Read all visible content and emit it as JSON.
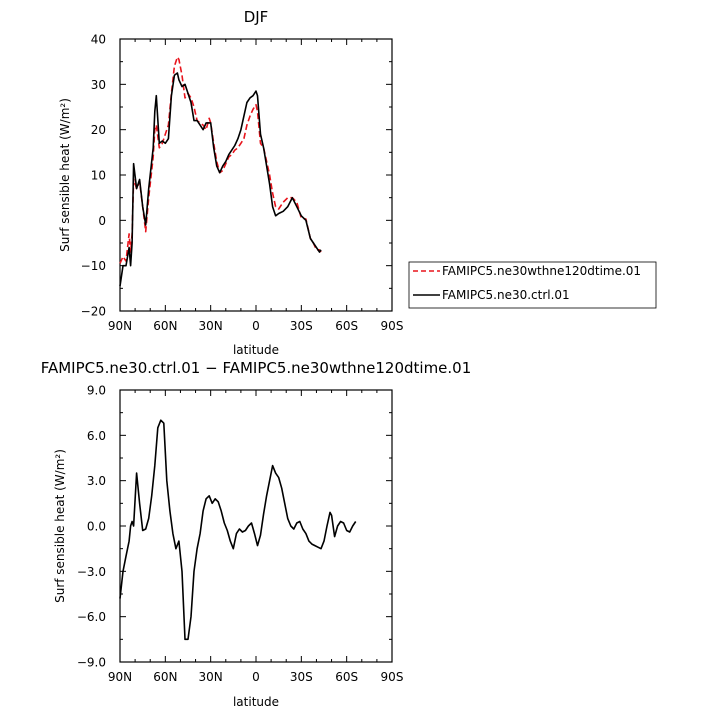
{
  "chart_data": [
    {
      "type": "line",
      "title": "DJF",
      "xlabel": "latitude",
      "ylabel": "Surf sensible heat (W/m²)",
      "xlim": [
        90,
        -90
      ],
      "ylim": [
        -20,
        40
      ],
      "x_tick_values": [
        90,
        60,
        30,
        0,
        -30,
        -60,
        -90
      ],
      "x_tick_labels": [
        "90N",
        "60N",
        "30N",
        "0",
        "30S",
        "60S",
        "90S"
      ],
      "y_tick_values": [
        -20,
        -10,
        0,
        10,
        20,
        30,
        40
      ],
      "y_tick_labels": [
        "−20",
        "−10",
        "0",
        "10",
        "20",
        "30",
        "40"
      ],
      "legend": "right",
      "series": [
        {
          "name": "FAMIPC5.ne30wthne120dtime.01",
          "color": "#e8141c",
          "dash": "dashed",
          "points": [
            [
              90,
              -9.5
            ],
            [
              88,
              -8
            ],
            [
              86,
              -9
            ],
            [
              84,
              -3
            ],
            [
              83,
              -7
            ],
            [
              82,
              -3
            ],
            [
              81,
              9
            ],
            [
              79,
              7
            ],
            [
              77,
              8.5
            ],
            [
              75,
              3
            ],
            [
              73,
              -2.5
            ],
            [
              71,
              5
            ],
            [
              68,
              14
            ],
            [
              67,
              20
            ],
            [
              66,
              21
            ],
            [
              64,
              16
            ],
            [
              62,
              17
            ],
            [
              60,
              19
            ],
            [
              58,
              21
            ],
            [
              56,
              28
            ],
            [
              54,
              34
            ],
            [
              52,
              36
            ],
            [
              51,
              35.5
            ],
            [
              49,
              32
            ],
            [
              47,
              27
            ],
            [
              45,
              28
            ],
            [
              43,
              27
            ],
            [
              41,
              25
            ],
            [
              39,
              22
            ],
            [
              37,
              21.5
            ],
            [
              35,
              21
            ],
            [
              33,
              20
            ],
            [
              31,
              22.5
            ],
            [
              30,
              21.5
            ],
            [
              28,
              17
            ],
            [
              26,
              13
            ],
            [
              24,
              10.5
            ],
            [
              22,
              11
            ],
            [
              20,
              12.5
            ],
            [
              18,
              14
            ],
            [
              16,
              14.5
            ],
            [
              14,
              15.5
            ],
            [
              12,
              16
            ],
            [
              10,
              17
            ],
            [
              8,
              18
            ],
            [
              6,
              21
            ],
            [
              4,
              23
            ],
            [
              2,
              24.5
            ],
            [
              0,
              25.5
            ],
            [
              -1,
              24
            ],
            [
              -3,
              17
            ],
            [
              -5,
              16
            ],
            [
              -7,
              13
            ],
            [
              -9,
              10
            ],
            [
              -11,
              6
            ],
            [
              -13,
              3
            ],
            [
              -15,
              2.5
            ],
            [
              -18,
              4
            ],
            [
              -21,
              5
            ],
            [
              -24,
              5
            ],
            [
              -27,
              4
            ],
            [
              -30,
              0.5
            ],
            [
              -33,
              0.3
            ],
            [
              -36,
              -4
            ],
            [
              -38,
              -5
            ],
            [
              -40,
              -6.5
            ],
            [
              -42,
              -6.5
            ],
            [
              -43,
              -7
            ]
          ]
        },
        {
          "name": "FAMIPC5.ne30.ctrl.01",
          "color": "#000000",
          "dash": "solid",
          "points": [
            [
              90,
              -14.5
            ],
            [
              88,
              -10
            ],
            [
              86,
              -10
            ],
            [
              84,
              -6
            ],
            [
              83,
              -10
            ],
            [
              82,
              -5
            ],
            [
              81,
              12.5
            ],
            [
              79,
              7
            ],
            [
              77,
              9
            ],
            [
              75,
              3
            ],
            [
              73,
              -1
            ],
            [
              71,
              7
            ],
            [
              68,
              16
            ],
            [
              67,
              24
            ],
            [
              66,
              27.5
            ],
            [
              64,
              17
            ],
            [
              62,
              17.5
            ],
            [
              60,
              17
            ],
            [
              58,
              18
            ],
            [
              56,
              27.5
            ],
            [
              54,
              32
            ],
            [
              52,
              32.5
            ],
            [
              51,
              31
            ],
            [
              49,
              29.5
            ],
            [
              47,
              30
            ],
            [
              45,
              28
            ],
            [
              43,
              26
            ],
            [
              41,
              22
            ],
            [
              39,
              22
            ],
            [
              37,
              21
            ],
            [
              35,
              20
            ],
            [
              33,
              21.5
            ],
            [
              31,
              21.5
            ],
            [
              30,
              21.5
            ],
            [
              28,
              16
            ],
            [
              26,
              12
            ],
            [
              24,
              10.5
            ],
            [
              22,
              12
            ],
            [
              20,
              13
            ],
            [
              18,
              14.5
            ],
            [
              16,
              15.5
            ],
            [
              14,
              16.5
            ],
            [
              12,
              18
            ],
            [
              10,
              20
            ],
            [
              8,
              23
            ],
            [
              6,
              26
            ],
            [
              4,
              27
            ],
            [
              2,
              27.5
            ],
            [
              0,
              28.5
            ],
            [
              -1,
              27.5
            ],
            [
              -3,
              19
            ],
            [
              -5,
              16
            ],
            [
              -7,
              12
            ],
            [
              -9,
              8
            ],
            [
              -11,
              3
            ],
            [
              -13,
              1
            ],
            [
              -15,
              1.5
            ],
            [
              -18,
              2
            ],
            [
              -21,
              3
            ],
            [
              -24,
              5
            ],
            [
              -27,
              3
            ],
            [
              -30,
              1
            ],
            [
              -33,
              0
            ],
            [
              -36,
              -4
            ],
            [
              -38,
              -5
            ],
            [
              -40,
              -6
            ],
            [
              -42,
              -7
            ],
            [
              -43,
              -6.5
            ]
          ]
        }
      ]
    },
    {
      "type": "line",
      "title": "FAMIPC5.ne30.ctrl.01 − FAMIPC5.ne30wthne120dtime.01",
      "xlabel": "latitude",
      "ylabel": "Surf sensible heat (W/m²)",
      "xlim": [
        90,
        -90
      ],
      "ylim": [
        -9,
        9
      ],
      "x_tick_values": [
        90,
        60,
        30,
        0,
        -30,
        -60,
        -90
      ],
      "x_tick_labels": [
        "90N",
        "60N",
        "30N",
        "0",
        "30S",
        "60S",
        "90S"
      ],
      "y_tick_values": [
        -9,
        -6,
        -3,
        0,
        3,
        6,
        9
      ],
      "y_tick_labels": [
        "−9.0",
        "−6.0",
        "−3.0",
        "0.0",
        "3.0",
        "6.0",
        "9.0"
      ],
      "series": [
        {
          "name": "",
          "color": "#000000",
          "dash": "solid",
          "points": [
            [
              90,
              -4.8
            ],
            [
              88,
              -3
            ],
            [
              86,
              -2
            ],
            [
              84,
              -1
            ],
            [
              83,
              0
            ],
            [
              82,
              0.3
            ],
            [
              81,
              0
            ],
            [
              79,
              3.5
            ],
            [
              77,
              1.5
            ],
            [
              75,
              -0.3
            ],
            [
              73,
              -0.2
            ],
            [
              71,
              0.5
            ],
            [
              69,
              2
            ],
            [
              67,
              4
            ],
            [
              65,
              6.5
            ],
            [
              63,
              7
            ],
            [
              61,
              6.8
            ],
            [
              59,
              3
            ],
            [
              57,
              1
            ],
            [
              55,
              -0.5
            ],
            [
              53,
              -1.5
            ],
            [
              51,
              -1
            ],
            [
              49,
              -3
            ],
            [
              47,
              -7.5
            ],
            [
              45,
              -7.5
            ],
            [
              43,
              -6
            ],
            [
              41,
              -3
            ],
            [
              39,
              -1.5
            ],
            [
              37,
              -0.5
            ],
            [
              35,
              1
            ],
            [
              33,
              1.8
            ],
            [
              31,
              2
            ],
            [
              29,
              1.5
            ],
            [
              27,
              1.8
            ],
            [
              25,
              1.6
            ],
            [
              23,
              1
            ],
            [
              21,
              0.2
            ],
            [
              19,
              -0.3
            ],
            [
              17,
              -1
            ],
            [
              15,
              -1.5
            ],
            [
              13,
              -0.5
            ],
            [
              11,
              -0.2
            ],
            [
              9,
              -0.4
            ],
            [
              7,
              -0.3
            ],
            [
              5,
              0
            ],
            [
              3,
              0.2
            ],
            [
              1,
              -0.5
            ],
            [
              -1,
              -1.3
            ],
            [
              -3,
              -0.6
            ],
            [
              -5,
              0.8
            ],
            [
              -7,
              2
            ],
            [
              -9,
              3
            ],
            [
              -11,
              4
            ],
            [
              -13,
              3.5
            ],
            [
              -15,
              3.2
            ],
            [
              -17,
              2.5
            ],
            [
              -19,
              1.5
            ],
            [
              -21,
              0.5
            ],
            [
              -23,
              0
            ],
            [
              -25,
              -0.2
            ],
            [
              -27,
              0.2
            ],
            [
              -29,
              0.3
            ],
            [
              -31,
              -0.2
            ],
            [
              -33,
              -0.5
            ],
            [
              -35,
              -1
            ],
            [
              -37,
              -1.2
            ],
            [
              -39,
              -1.3
            ],
            [
              -41,
              -1.4
            ],
            [
              -43,
              -1.5
            ],
            [
              -45,
              -1
            ],
            [
              -47,
              0
            ],
            [
              -49,
              0.9
            ],
            [
              -50,
              0.7
            ],
            [
              -52,
              -0.7
            ],
            [
              -54,
              0
            ],
            [
              -56,
              0.3
            ],
            [
              -58,
              0.2
            ],
            [
              -60,
              -0.3
            ],
            [
              -62,
              -0.4
            ],
            [
              -64,
              0
            ],
            [
              -66,
              0.3
            ]
          ]
        }
      ]
    }
  ]
}
